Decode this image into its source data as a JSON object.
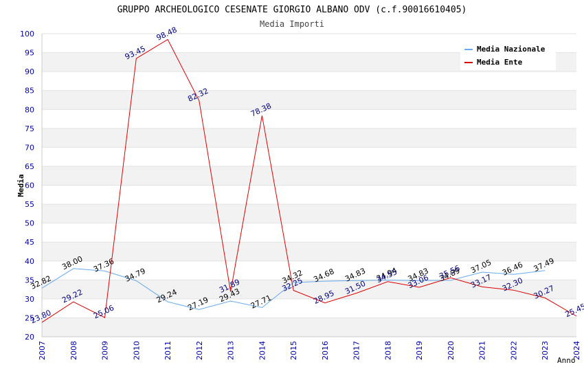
{
  "chart_data": {
    "type": "line",
    "title": "GRUPPO ARCHEOLOGICO CESENATE GIORGIO ALBANO ODV (c.f.90016610405)",
    "subtitle": "Media Importi",
    "xlabel": "Anno",
    "ylabel": "Media",
    "ylim": [
      20,
      100
    ],
    "yticks": [
      "20",
      "25",
      "30",
      "35",
      "40",
      "45",
      "50",
      "55",
      "60",
      "65",
      "70",
      "75",
      "80",
      "85",
      "90",
      "95",
      "100"
    ],
    "x": [
      "2007",
      "2008",
      "2009",
      "2010",
      "2011",
      "2012",
      "2013",
      "2014",
      "2015",
      "2016",
      "2017",
      "2018",
      "2019",
      "2020",
      "2021",
      "2022",
      "2023",
      "2024"
    ],
    "grid": "horizontal, alternating bands",
    "legend_position": "top-right",
    "series": [
      {
        "name": "Media Nazionale",
        "color": "#66aaee",
        "label_color": "#000000",
        "values": [
          32.82,
          38.0,
          37.36,
          34.79,
          29.24,
          27.19,
          29.43,
          27.71,
          34.32,
          34.68,
          34.83,
          34.94,
          34.83,
          34.89,
          37.05,
          36.46,
          37.49,
          null
        ],
        "labels": [
          "32.82",
          "38.00",
          "37.36",
          "34.79",
          "29.24",
          "27.19",
          "29.43",
          "27.71",
          "34.32",
          "34.68",
          "34.83",
          "34.94",
          "34.83",
          "34.89",
          "37.05",
          "36.46",
          "37.49",
          ""
        ]
      },
      {
        "name": "Media Ente",
        "color": "#dd0000",
        "label_color": "#000080",
        "values": [
          23.8,
          29.22,
          25.06,
          93.45,
          98.48,
          82.32,
          31.89,
          78.38,
          32.25,
          28.95,
          31.5,
          34.55,
          33.06,
          35.56,
          33.17,
          32.3,
          30.27,
          25.45
        ],
        "labels": [
          "23.80",
          "29.22",
          "25.06",
          "93.45",
          "98.48",
          "82.32",
          "31.89",
          "78.38",
          "32.25",
          "28.95",
          "31.50",
          "34.55",
          "33.06",
          "35.56",
          "33.17",
          "32.30",
          "30.27",
          "25.45"
        ]
      }
    ]
  }
}
